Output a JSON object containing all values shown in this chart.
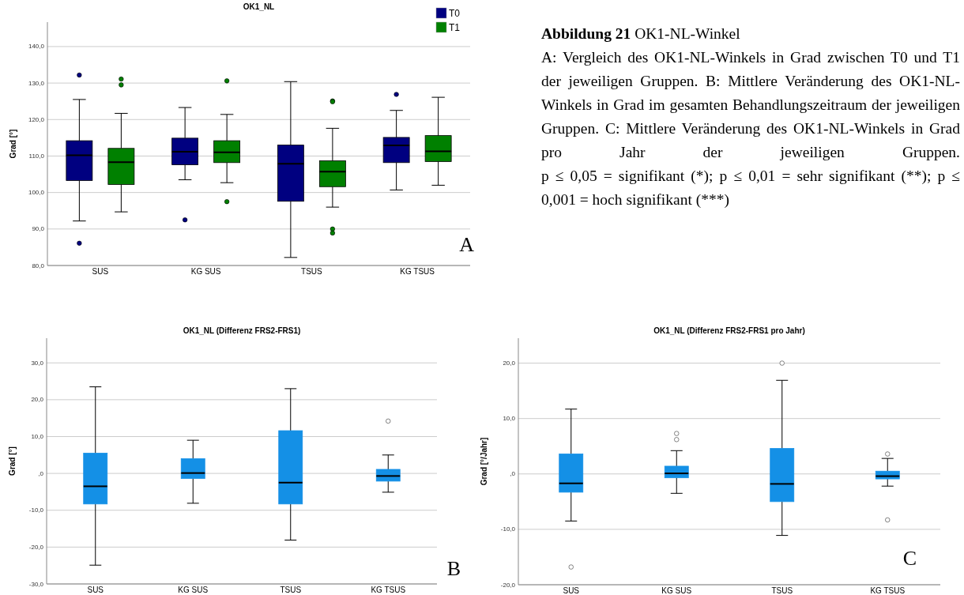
{
  "chart_data": [
    {
      "type": "box",
      "title": "OK1_NL",
      "ylabel": "Grad [°]",
      "categories": [
        "SUS",
        "KG SUS",
        "TSUS",
        "KG TSUS"
      ],
      "ylim": [
        80,
        146.7
      ],
      "yticks": [
        {
          "value": 80,
          "label": "80,0"
        },
        {
          "value": 90,
          "label": "90,0"
        },
        {
          "value": 100,
          "label": "100,0"
        },
        {
          "value": 110,
          "label": "110,0"
        },
        {
          "value": 120,
          "label": "120,0"
        },
        {
          "value": 130,
          "label": "130,0"
        },
        {
          "value": 140,
          "label": "140,0"
        }
      ],
      "grid": "y",
      "legend": "top right",
      "annotations": [
        {
          "text": "A"
        }
      ],
      "series": [
        {
          "name": "T0",
          "color": "#000080",
          "boxes": [
            {
              "low": 92.2,
              "q1": 103.3,
              "median": 110.2,
              "q3": 114.2,
              "high": 125.5,
              "outliers": [
                132.2,
                86.1
              ]
            },
            {
              "low": 103.5,
              "q1": 107.6,
              "median": 111.2,
              "q3": 114.9,
              "high": 123.3,
              "outliers": [
                92.5
              ]
            },
            {
              "low": 82.2,
              "q1": 97.6,
              "median": 107.9,
              "q3": 113.0,
              "high": 130.4
            },
            {
              "low": 100.7,
              "q1": 108.2,
              "median": 112.9,
              "q3": 115.1,
              "high": 122.5,
              "outliers": [
                126.9
              ]
            }
          ]
        },
        {
          "name": "T1",
          "color": "#008000",
          "boxes": [
            {
              "low": 94.7,
              "q1": 102.2,
              "median": 108.3,
              "q3": 112.1,
              "high": 121.7,
              "outliers": [
                131.1,
                129.5
              ]
            },
            {
              "low": 102.7,
              "q1": 108.2,
              "median": 111.0,
              "q3": 114.2,
              "high": 121.4,
              "outliers": [
                130.6,
                97.5
              ]
            },
            {
              "low": 96.0,
              "q1": 101.6,
              "median": 105.7,
              "q3": 108.7,
              "high": 117.6,
              "outliers": [
                125.1,
                124.9,
                90.0,
                88.9
              ]
            },
            {
              "low": 102.0,
              "q1": 108.5,
              "median": 111.3,
              "q3": 115.6,
              "high": 126.1
            }
          ]
        }
      ]
    },
    {
      "type": "other",
      "title": "Abbildung 21",
      "subtitle": "OK1-NL-Winkel",
      "annotations": [
        "A: Vergleich des OK1-NL-Winkels in Grad zwischen T0 und T1 der jeweiligen Gruppen. B: Mittlere Veränderung des OK1-NL-Winkels in Grad im gesamten Behandlungszeitraum der jeweiligen Gruppen. C: Mittlere Veränderung des OK1-NL-Winkels in Grad pro Jahr der jeweiligen Gruppen.",
        "p ≤ 0,05 = signifikant (*); p ≤ 0,01 = sehr signifikant (**); p ≤ 0,001 = hoch signifikant (***)"
      ]
    },
    {
      "type": "box",
      "title": "OK1_NL (Differenz FRS2-FRS1)",
      "ylabel": "Grad [°]",
      "categories": [
        "SUS",
        "KG SUS",
        "TSUS",
        "KG TSUS"
      ],
      "ylim": [
        -30,
        36.7
      ],
      "yticks": [
        {
          "value": -30,
          "label": "-30,0"
        },
        {
          "value": -20,
          "label": "-20,0"
        },
        {
          "value": -10,
          "label": "-10,0"
        },
        {
          "value": 0,
          "label": ",0"
        },
        {
          "value": 10,
          "label": "10,0"
        },
        {
          "value": 20,
          "label": "20,0"
        },
        {
          "value": 30,
          "label": "30,0"
        }
      ],
      "grid": "y",
      "annotations": [
        {
          "text": "B"
        }
      ],
      "series": [
        {
          "color": "#1490e6",
          "boxes": [
            {
              "low": -24.9,
              "q1": -8.3,
              "median": -3.5,
              "q3": 5.5,
              "high": 23.5
            },
            {
              "low": -8.1,
              "q1": -1.4,
              "median": 0.1,
              "q3": 4.0,
              "high": 9.0
            },
            {
              "low": -18.1,
              "q1": -8.3,
              "median": -2.5,
              "q3": 11.6,
              "high": 23.0
            },
            {
              "low": -5.1,
              "q1": -2.1,
              "median": -0.7,
              "q3": 1.1,
              "high": 5.0,
              "outliers": [
                14.2
              ]
            }
          ]
        }
      ]
    },
    {
      "type": "box",
      "title": "OK1_NL (Differenz FRS2-FRS1 pro Jahr)",
      "ylabel": "Grad [°/Jahr]",
      "categories": [
        "SUS",
        "KG SUS",
        "TSUS",
        "KG TSUS"
      ],
      "ylim": [
        -20,
        24.5
      ],
      "yticks": [
        {
          "value": -20,
          "label": "-20,0"
        },
        {
          "value": -10,
          "label": "-10,0"
        },
        {
          "value": 0,
          "label": ",0"
        },
        {
          "value": 10,
          "label": "10,0"
        },
        {
          "value": 20,
          "label": "20,0"
        }
      ],
      "grid": "y",
      "annotations": [
        {
          "text": "C"
        }
      ],
      "series": [
        {
          "color": "#1490e6",
          "boxes": [
            {
              "low": -8.5,
              "q1": -3.3,
              "median": -1.7,
              "q3": 3.6,
              "high": 11.7,
              "outliers": [
                -16.8
              ]
            },
            {
              "low": -3.5,
              "q1": -0.7,
              "median": 0.1,
              "q3": 1.4,
              "high": 4.2,
              "outliers": [
                7.3,
                6.2
              ]
            },
            {
              "low": -11.1,
              "q1": -5.0,
              "median": -1.8,
              "q3": 4.6,
              "high": 16.9,
              "outliers": [
                20.0
              ]
            },
            {
              "low": -2.2,
              "q1": -0.9,
              "median": -0.4,
              "q3": 0.5,
              "high": 2.8,
              "outliers": [
                3.6,
                -8.3
              ]
            }
          ]
        }
      ]
    }
  ]
}
